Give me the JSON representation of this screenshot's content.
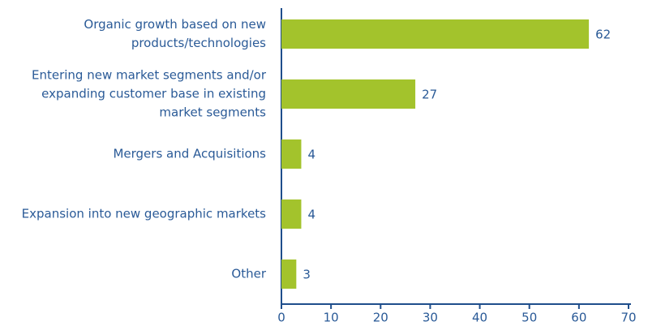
{
  "chart_data": {
    "type": "bar",
    "orientation": "horizontal",
    "categories": [
      "Organic growth based on new products/technologies",
      "Entering new market segments and/or expanding customer base in existing market segments",
      "Mergers and Acquisitions",
      "Expansion into new geographic markets",
      "Other"
    ],
    "values": [
      62,
      27,
      4,
      4,
      3
    ],
    "color": "#a3c32c",
    "xlim": [
      0,
      70
    ],
    "xticks": [
      0,
      10,
      20,
      30,
      40,
      50,
      60,
      70
    ]
  }
}
